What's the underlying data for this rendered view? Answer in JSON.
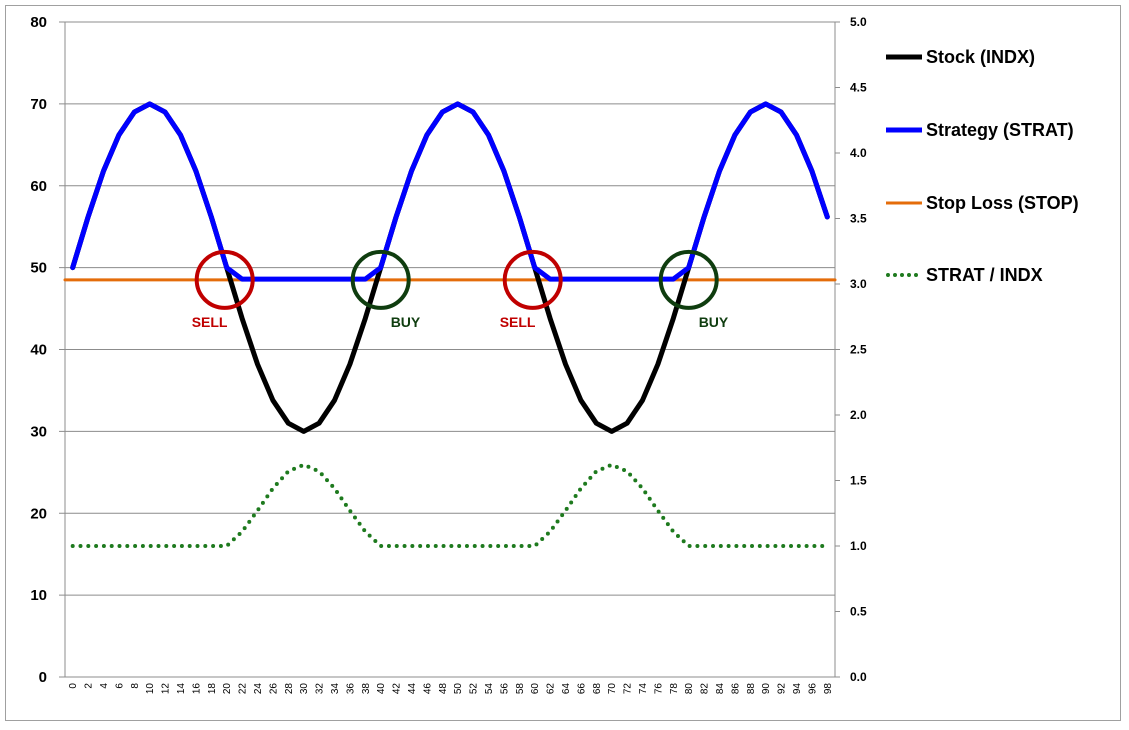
{
  "chart_data": {
    "type": "line",
    "title": "",
    "xlabel": "",
    "ylabel": "",
    "x": [
      0,
      2,
      4,
      6,
      8,
      10,
      12,
      14,
      16,
      18,
      20,
      22,
      24,
      26,
      28,
      30,
      32,
      34,
      36,
      38,
      40,
      42,
      44,
      46,
      48,
      50,
      52,
      54,
      56,
      58,
      60,
      62,
      64,
      66,
      68,
      70,
      72,
      74,
      76,
      78,
      80,
      82,
      84,
      86,
      88,
      90,
      92,
      94,
      96,
      98
    ],
    "x_tick_labels": [
      "0",
      "2",
      "4",
      "6",
      "8",
      "10",
      "12",
      "14",
      "16",
      "18",
      "20",
      "22",
      "24",
      "26",
      "28",
      "30",
      "32",
      "34",
      "36",
      "38",
      "40",
      "42",
      "44",
      "46",
      "48",
      "50",
      "52",
      "54",
      "56",
      "58",
      "60",
      "62",
      "64",
      "66",
      "68",
      "70",
      "72",
      "74",
      "76",
      "78",
      "80",
      "82",
      "84",
      "86",
      "88",
      "90",
      "92",
      "94",
      "96",
      "98"
    ],
    "ylim": [
      0,
      80
    ],
    "y_ticks": [
      "0",
      "10",
      "20",
      "30",
      "40",
      "50",
      "60",
      "70",
      "80"
    ],
    "y2lim": [
      0,
      5
    ],
    "y2_ticks": [
      "0.0",
      "0.5",
      "1.0",
      "1.5",
      "2.0",
      "2.5",
      "3.0",
      "3.5",
      "4.0",
      "4.5",
      "5.0"
    ],
    "grid": true,
    "legend_position": "right",
    "series": [
      {
        "name": "Stock (INDX)",
        "axis": "left",
        "color": "#000000",
        "style": "solid",
        "values": [
          50,
          56.2,
          61.8,
          66.2,
          69.0,
          70,
          69.0,
          66.2,
          61.8,
          56.2,
          50,
          43.8,
          38.2,
          33.8,
          31.0,
          30,
          31.0,
          33.8,
          38.2,
          43.8,
          50,
          56.2,
          61.8,
          66.2,
          69.0,
          70,
          69.0,
          66.2,
          61.8,
          56.2,
          50,
          43.8,
          38.2,
          33.8,
          31.0,
          30,
          31.0,
          33.8,
          38.2,
          43.8,
          50,
          56.2,
          61.8,
          66.2,
          69.0,
          70,
          69.0,
          66.2,
          61.8,
          56.2
        ]
      },
      {
        "name": "Strategy (STRAT)",
        "axis": "left",
        "color": "#0000ff",
        "style": "solid",
        "values": [
          50,
          56.2,
          61.8,
          66.2,
          69.0,
          70,
          69.0,
          66.2,
          61.8,
          56.2,
          50,
          48.6,
          48.6,
          48.6,
          48.6,
          48.6,
          48.6,
          48.6,
          48.6,
          48.6,
          50,
          56.2,
          61.8,
          66.2,
          69.0,
          70,
          69.0,
          66.2,
          61.8,
          56.2,
          50,
          48.6,
          48.6,
          48.6,
          48.6,
          48.6,
          48.6,
          48.6,
          48.6,
          48.6,
          50,
          56.2,
          61.8,
          66.2,
          69.0,
          70,
          69.0,
          66.2,
          61.8,
          56.2
        ]
      },
      {
        "name": "Stop Loss (STOP)",
        "axis": "left",
        "color": "#e46c0a",
        "style": "solid",
        "values": [
          48.5,
          48.5,
          48.5,
          48.5,
          48.5,
          48.5,
          48.5,
          48.5,
          48.5,
          48.5,
          48.5,
          48.5,
          48.5,
          48.5,
          48.5,
          48.5,
          48.5,
          48.5,
          48.5,
          48.5,
          48.5,
          48.5,
          48.5,
          48.5,
          48.5,
          48.5,
          48.5,
          48.5,
          48.5,
          48.5,
          48.5,
          48.5,
          48.5,
          48.5,
          48.5,
          48.5,
          48.5,
          48.5,
          48.5,
          48.5,
          48.5,
          48.5,
          48.5,
          48.5,
          48.5,
          48.5,
          48.5,
          48.5,
          48.5,
          48.5
        ]
      },
      {
        "name": "STRAT / INDX",
        "axis": "right",
        "color": "#1e7a1e",
        "style": "dotted",
        "values": [
          1,
          1,
          1,
          1,
          1,
          1,
          1,
          1,
          1,
          1,
          1,
          1.11,
          1.27,
          1.44,
          1.57,
          1.62,
          1.57,
          1.44,
          1.27,
          1.11,
          1,
          1,
          1,
          1,
          1,
          1,
          1,
          1,
          1,
          1,
          1,
          1.11,
          1.27,
          1.44,
          1.57,
          1.62,
          1.57,
          1.44,
          1.27,
          1.11,
          1,
          1,
          1,
          1,
          1,
          1,
          1,
          1,
          1,
          1
        ]
      }
    ],
    "annotations": [
      {
        "label": "SELL",
        "x": 20,
        "y": 48.5,
        "color": "#c00000",
        "side": "left"
      },
      {
        "label": "BUY",
        "x": 40,
        "y": 48.5,
        "color": "#0f3d0f",
        "side": "right"
      },
      {
        "label": "SELL",
        "x": 60,
        "y": 48.5,
        "color": "#c00000",
        "side": "left"
      },
      {
        "label": "BUY",
        "x": 80,
        "y": 48.5,
        "color": "#0f3d0f",
        "side": "right"
      }
    ]
  }
}
